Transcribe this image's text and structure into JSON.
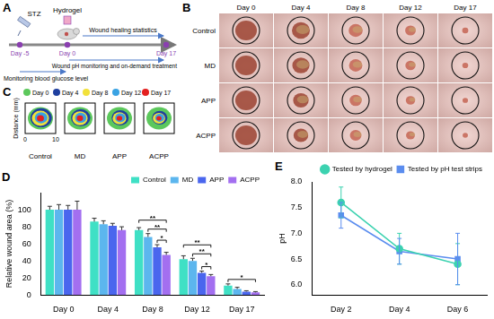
{
  "panels": {
    "A": {
      "label": "A",
      "agents": [
        "STZ",
        "Hydrogel"
      ],
      "days": [
        "Day -5",
        "Day 0",
        "Day 17"
      ],
      "phases": [
        "Monitoring blood glucose level",
        "Wound healing statistics",
        "Wound pH monitoring and on-demand treatment"
      ]
    },
    "B": {
      "label": "B",
      "columns": [
        "Day 0",
        "Day 4",
        "Day 8",
        "Day 12",
        "Day 17"
      ],
      "rows": [
        "Control",
        "MD",
        "APP",
        "ACPP"
      ]
    },
    "C": {
      "label": "C",
      "legend": [
        "Day 0",
        "Day 4",
        "Day 8",
        "Day 12",
        "Day 17"
      ],
      "colors": [
        "#5cc85c",
        "#1f3f9f",
        "#f2e13a",
        "#3aa3e3",
        "#e32020"
      ],
      "groups": [
        "Control",
        "MD",
        "APP",
        "ACPP"
      ],
      "axis_label": "Distance (mm)",
      "ticks": [
        0,
        10
      ]
    }
  },
  "chart_data": [
    {
      "label": "D",
      "type": "bar",
      "y_label": "Relative wound area (%)",
      "categories": [
        "Day 0",
        "Day 4",
        "Day 8",
        "Day 12",
        "Day 17"
      ],
      "series": [
        {
          "name": "Control",
          "color": "#3fe0c5",
          "values": [
            100,
            86,
            76,
            42,
            11
          ],
          "errors": [
            4,
            4,
            3,
            4,
            2
          ]
        },
        {
          "name": "MD",
          "color": "#5cb6ee",
          "values": [
            100,
            83,
            68,
            40,
            7
          ],
          "errors": [
            6,
            4,
            4,
            3,
            2
          ]
        },
        {
          "name": "APP",
          "color": "#4a66ee",
          "values": [
            100,
            81,
            56,
            26,
            4
          ],
          "errors": [
            5,
            3,
            3,
            2,
            1
          ]
        },
        {
          "name": "ACPP",
          "color": "#a36ff0",
          "values": [
            100,
            76,
            47,
            22,
            3
          ],
          "errors": [
            10,
            4,
            3,
            2,
            1
          ]
        }
      ],
      "significance": [
        {
          "category": "Day 8",
          "from": "Control",
          "to": "ACPP",
          "label": "**"
        },
        {
          "category": "Day 8",
          "from": "MD",
          "to": "ACPP",
          "label": "**"
        },
        {
          "category": "Day 8",
          "from": "APP",
          "to": "ACPP",
          "label": "*"
        },
        {
          "category": "Day 12",
          "from": "Control",
          "to": "ACPP",
          "label": "**"
        },
        {
          "category": "Day 12",
          "from": "MD",
          "to": "ACPP",
          "label": "**"
        },
        {
          "category": "Day 12",
          "from": "APP",
          "to": "ACPP",
          "label": "*"
        },
        {
          "category": "Day 17",
          "from": "Control",
          "to": "ACPP",
          "label": "*"
        }
      ],
      "ylim": [
        0,
        120
      ],
      "yticks": [
        0,
        20,
        40,
        60,
        80,
        100
      ],
      "grid": false,
      "legend": "upper right"
    },
    {
      "label": "E",
      "type": "line",
      "y_label": "pH",
      "categories": [
        "Day 2",
        "Day 4",
        "Day 6"
      ],
      "series": [
        {
          "name": "Tested by hydrogel",
          "color": "#3cd2b0",
          "marker": "circle",
          "values": [
            7.6,
            6.7,
            6.4
          ],
          "errors": [
            0.3,
            0.3,
            0.4
          ]
        },
        {
          "name": "Tested by pH test strips",
          "color": "#5b8def",
          "marker": "square",
          "values": [
            7.35,
            6.65,
            6.5
          ],
          "errors": [
            0.25,
            0.25,
            0.5
          ]
        }
      ],
      "ylim": [
        5.8,
        8.0
      ],
      "yticks": [
        {
          "value": 6,
          "label": "6.0"
        },
        {
          "value": 6.5,
          "label": "6.5"
        },
        {
          "value": 7,
          "label": "7.0"
        },
        {
          "value": 7.5,
          "label": "7.5"
        },
        {
          "value": 8,
          "label": "8.0"
        }
      ],
      "grid": false,
      "legend": "upper right"
    }
  ]
}
